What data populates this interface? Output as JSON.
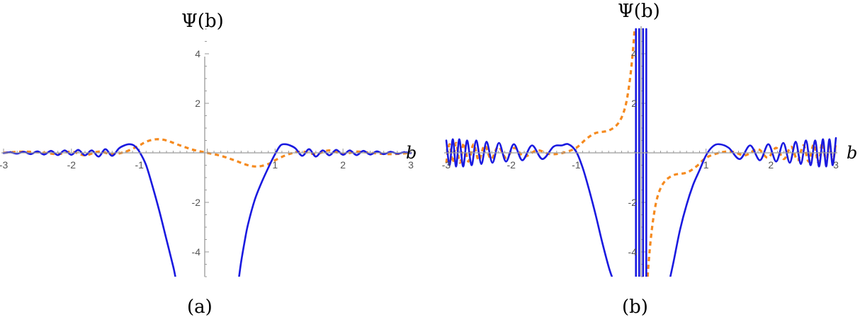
{
  "chart_data": [
    {
      "type": "line",
      "panel_label": "(a)",
      "xlabel": "b",
      "ylabel": "Ψ(b)",
      "xlim": [
        -3,
        3
      ],
      "ylim": [
        -5,
        5
      ],
      "x_ticks": [
        "-3",
        "-2",
        "-1",
        "1",
        "2",
        "3"
      ],
      "y_ticks": [
        "-4",
        "-2",
        "2",
        "4"
      ],
      "series": [
        {
          "style": "solid",
          "color": "#1a1ae0",
          "segments": [
            [
              [
                -3.0,
                -0.01
              ],
              [
                -2.9,
                0.02
              ],
              [
                -2.8,
                -0.03
              ],
              [
                -2.7,
                0.04
              ],
              [
                -2.6,
                -0.05
              ],
              [
                -2.5,
                0.06
              ],
              [
                -2.4,
                -0.07
              ],
              [
                -2.3,
                0.08
              ],
              [
                -2.2,
                -0.09
              ],
              [
                -2.1,
                0.1
              ],
              [
                -2.0,
                -0.08
              ],
              [
                -1.9,
                0.12
              ],
              [
                -1.8,
                -0.1
              ],
              [
                -1.7,
                0.1
              ],
              [
                -1.6,
                -0.15
              ],
              [
                -1.5,
                0.15
              ],
              [
                -1.4,
                -0.12
              ],
              [
                -1.3,
                0.18
              ],
              [
                -1.22,
                0.3
              ],
              [
                -1.15,
                0.35
              ],
              [
                -1.08,
                0.3
              ],
              [
                -1.0,
                0.05
              ],
              [
                -0.9,
                -0.5
              ],
              [
                -0.8,
                -1.4
              ],
              [
                -0.7,
                -2.4
              ],
              [
                -0.6,
                -3.5
              ],
              [
                -0.5,
                -4.6
              ],
              [
                -0.47,
                -5.0
              ]
            ],
            [
              [
                0.47,
                -5.0
              ],
              [
                0.5,
                -4.4
              ],
              [
                0.55,
                -3.6
              ],
              [
                0.6,
                -2.9
              ],
              [
                0.7,
                -1.9
              ],
              [
                0.8,
                -1.2
              ],
              [
                0.9,
                -0.6
              ],
              [
                1.0,
                -0.05
              ],
              [
                1.08,
                0.3
              ],
              [
                1.15,
                0.35
              ],
              [
                1.22,
                0.3
              ],
              [
                1.3,
                0.18
              ],
              [
                1.4,
                -0.12
              ],
              [
                1.5,
                0.15
              ],
              [
                1.6,
                -0.15
              ],
              [
                1.7,
                0.1
              ],
              [
                1.8,
                -0.1
              ],
              [
                1.9,
                0.12
              ],
              [
                2.0,
                -0.08
              ],
              [
                2.1,
                0.1
              ],
              [
                2.2,
                -0.09
              ],
              [
                2.3,
                0.08
              ],
              [
                2.4,
                -0.07
              ],
              [
                2.5,
                0.06
              ],
              [
                2.6,
                -0.05
              ],
              [
                2.7,
                0.04
              ],
              [
                2.8,
                -0.03
              ],
              [
                2.9,
                0.02
              ],
              [
                3.0,
                -0.01
              ]
            ]
          ]
        },
        {
          "style": "dashed",
          "color": "#f58a1f",
          "segments": [
            [
              [
                -3.0,
                0.0
              ],
              [
                -2.7,
                0.05
              ],
              [
                -2.4,
                0.0
              ],
              [
                -2.2,
                -0.05
              ],
              [
                -2.0,
                0.05
              ],
              [
                -1.8,
                -0.1
              ],
              [
                -1.6,
                0.05
              ],
              [
                -1.4,
                -0.05
              ],
              [
                -1.2,
                0.05
              ],
              [
                -1.0,
                0.3
              ],
              [
                -0.9,
                0.45
              ],
              [
                -0.75,
                0.55
              ],
              [
                -0.6,
                0.5
              ],
              [
                -0.4,
                0.3
              ],
              [
                -0.2,
                0.12
              ],
              [
                0.0,
                0.0
              ],
              [
                0.2,
                -0.12
              ],
              [
                0.4,
                -0.3
              ],
              [
                0.6,
                -0.5
              ],
              [
                0.75,
                -0.55
              ],
              [
                0.9,
                -0.45
              ],
              [
                1.0,
                -0.3
              ],
              [
                1.2,
                -0.05
              ],
              [
                1.4,
                0.05
              ],
              [
                1.6,
                -0.05
              ],
              [
                1.8,
                0.1
              ],
              [
                2.0,
                -0.05
              ],
              [
                2.2,
                0.05
              ],
              [
                2.4,
                0.0
              ],
              [
                2.7,
                -0.05
              ],
              [
                3.0,
                0.0
              ]
            ]
          ]
        }
      ]
    },
    {
      "type": "line",
      "panel_label": "(b)",
      "xlabel": "b",
      "ylabel": "Ψ(b)",
      "xlim": [
        -3,
        3
      ],
      "ylim": [
        -5,
        5
      ],
      "x_ticks": [
        "-3",
        "-2",
        "-1",
        "1",
        "2",
        "3"
      ],
      "y_ticks": [
        "-4",
        "-2",
        "2",
        "4"
      ],
      "series": [
        {
          "style": "solid",
          "color": "#1a1ae0",
          "segments": [
            [
              [
                -3.0,
                0.5
              ],
              [
                -2.95,
                -0.5
              ],
              [
                -2.9,
                0.55
              ],
              [
                -2.85,
                -0.55
              ],
              [
                -2.8,
                0.55
              ],
              [
                -2.74,
                -0.55
              ],
              [
                -2.68,
                0.5
              ],
              [
                -2.61,
                -0.5
              ],
              [
                -2.54,
                0.5
              ],
              [
                -2.46,
                -0.45
              ],
              [
                -2.38,
                0.45
              ],
              [
                -2.29,
                -0.4
              ],
              [
                -2.19,
                0.4
              ],
              [
                -2.08,
                -0.35
              ],
              [
                -1.96,
                0.35
              ],
              [
                -1.83,
                -0.3
              ],
              [
                -1.68,
                0.3
              ],
              [
                -1.52,
                -0.25
              ],
              [
                -1.35,
                0.25
              ],
              [
                -1.22,
                0.3
              ],
              [
                -1.12,
                0.35
              ],
              [
                -1.0,
                0.05
              ],
              [
                -0.9,
                -0.6
              ],
              [
                -0.8,
                -1.5
              ],
              [
                -0.7,
                -2.5
              ],
              [
                -0.6,
                -3.6
              ],
              [
                -0.5,
                -4.6
              ],
              [
                -0.45,
                -5.0
              ]
            ],
            [
              [
                0.45,
                -5.0
              ],
              [
                0.5,
                -4.4
              ],
              [
                0.6,
                -3.1
              ],
              [
                0.7,
                -2.1
              ],
              [
                0.8,
                -1.3
              ],
              [
                0.9,
                -0.7
              ],
              [
                1.0,
                -0.1
              ],
              [
                1.1,
                0.25
              ],
              [
                1.2,
                0.35
              ],
              [
                1.35,
                0.2
              ],
              [
                1.52,
                -0.25
              ],
              [
                1.68,
                0.3
              ],
              [
                1.83,
                -0.3
              ],
              [
                1.96,
                0.35
              ],
              [
                2.08,
                -0.35
              ],
              [
                2.19,
                0.4
              ],
              [
                2.29,
                -0.4
              ],
              [
                2.38,
                0.45
              ],
              [
                2.46,
                -0.45
              ],
              [
                2.54,
                0.5
              ],
              [
                2.61,
                -0.5
              ],
              [
                2.68,
                0.5
              ],
              [
                2.74,
                -0.55
              ],
              [
                2.8,
                0.55
              ],
              [
                2.85,
                -0.55
              ],
              [
                2.9,
                0.55
              ],
              [
                2.95,
                -0.5
              ],
              [
                3.0,
                0.6
              ]
            ],
            [
              [
                -0.08,
                5.0
              ],
              [
                -0.08,
                -5.0
              ]
            ],
            [
              [
                -0.03,
                5.0
              ],
              [
                -0.03,
                -5.0
              ]
            ],
            [
              [
                0.03,
                5.0
              ],
              [
                0.03,
                -5.0
              ]
            ],
            [
              [
                0.08,
                5.0
              ],
              [
                0.08,
                -5.0
              ]
            ]
          ]
        },
        {
          "style": "dashed",
          "color": "#f58a1f",
          "segments": [
            [
              [
                -3.0,
                -0.4
              ],
              [
                -2.95,
                0.35
              ],
              [
                -2.9,
                -0.4
              ],
              [
                -2.85,
                0.4
              ],
              [
                -2.79,
                -0.4
              ],
              [
                -2.73,
                0.4
              ],
              [
                -2.66,
                -0.35
              ],
              [
                -2.58,
                0.35
              ],
              [
                -2.5,
                -0.3
              ],
              [
                -2.41,
                0.3
              ],
              [
                -2.31,
                -0.25
              ],
              [
                -2.2,
                0.25
              ],
              [
                -2.08,
                -0.2
              ],
              [
                -1.95,
                0.2
              ],
              [
                -1.8,
                -0.15
              ],
              [
                -1.6,
                0.1
              ],
              [
                -1.4,
                -0.05
              ],
              [
                -1.2,
                0.0
              ],
              [
                -1.0,
                0.2
              ],
              [
                -0.85,
                0.55
              ],
              [
                -0.7,
                0.8
              ],
              [
                -0.5,
                0.9
              ],
              [
                -0.35,
                1.2
              ],
              [
                -0.25,
                1.8
              ],
              [
                -0.18,
                2.8
              ],
              [
                -0.13,
                4.0
              ],
              [
                -0.1,
                5.0
              ]
            ],
            [
              [
                0.1,
                -5.0
              ],
              [
                0.13,
                -4.0
              ],
              [
                0.18,
                -2.8
              ],
              [
                0.25,
                -1.8
              ],
              [
                0.35,
                -1.2
              ],
              [
                0.5,
                -0.9
              ],
              [
                0.7,
                -0.8
              ],
              [
                0.85,
                -0.55
              ],
              [
                1.0,
                -0.2
              ],
              [
                1.2,
                0.0
              ],
              [
                1.4,
                0.05
              ],
              [
                1.6,
                -0.1
              ],
              [
                1.8,
                0.15
              ],
              [
                1.95,
                -0.2
              ],
              [
                2.08,
                0.2
              ],
              [
                2.2,
                -0.25
              ],
              [
                2.31,
                0.25
              ],
              [
                2.41,
                -0.3
              ],
              [
                2.5,
                0.3
              ],
              [
                2.58,
                -0.35
              ],
              [
                2.66,
                0.35
              ],
              [
                2.73,
                -0.4
              ],
              [
                2.79,
                0.4
              ],
              [
                2.85,
                -0.4
              ],
              [
                2.9,
                0.4
              ],
              [
                2.95,
                -0.35
              ],
              [
                3.0,
                0.4
              ]
            ]
          ]
        }
      ]
    }
  ]
}
